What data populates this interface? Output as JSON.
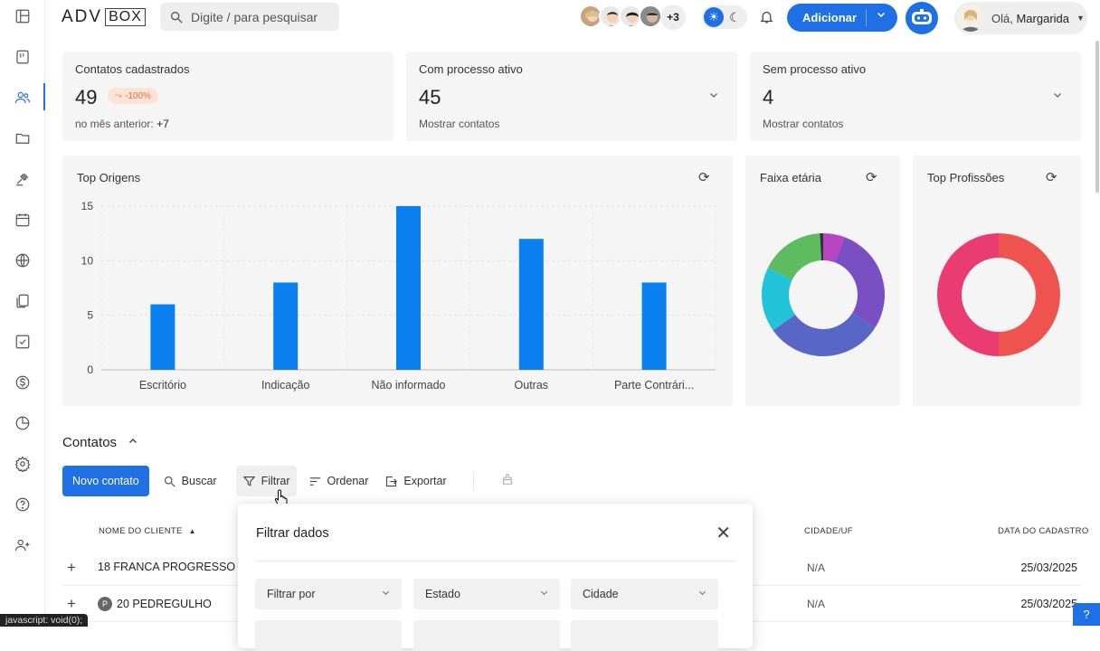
{
  "topbar": {
    "logo_left": "ADV",
    "logo_right": "BOX",
    "search_placeholder": "Digite / para pesquisar",
    "team_more": "+3",
    "add_button": "Adicionar",
    "greeting": "Olá,",
    "user_name": "Margarida"
  },
  "stats": [
    {
      "title": "Contatos cadastrados",
      "value": "49",
      "badge": "-100%",
      "sub_label": "no mês anterior:",
      "sub_value": "+7"
    },
    {
      "title": "Com processo ativo",
      "value": "45",
      "sub_label": "Mostrar contatos"
    },
    {
      "title": "Sem processo ativo",
      "value": "4",
      "sub_label": "Mostrar contatos"
    }
  ],
  "charts": {
    "origins_title": "Top Origens",
    "age_title": "Faixa etária",
    "professions_title": "Top Profissões"
  },
  "chart_data": [
    {
      "type": "bar",
      "title": "Top Origens",
      "categories": [
        "Escritório",
        "Indicação",
        "Não informado",
        "Outras",
        "Parte Contrári..."
      ],
      "values": [
        6,
        8,
        15,
        12,
        8
      ],
      "ylim": [
        0,
        15
      ],
      "yticks": [
        0,
        5,
        10,
        15
      ],
      "grid": true,
      "color": "#0a7ff0"
    },
    {
      "type": "pie",
      "title": "Faixa etária",
      "values": [
        2,
        10,
        11,
        6,
        6,
        0.3
      ],
      "colors": [
        "#b546c0",
        "#7a4fc4",
        "#5867c6",
        "#22c3d8",
        "#5cbc5f",
        "#333333"
      ]
    },
    {
      "type": "pie",
      "title": "Top Profissões",
      "values": [
        50,
        50
      ],
      "colors": [
        "#ef5350",
        "#e83c72"
      ]
    }
  ],
  "contacts": {
    "section_title": "Contatos",
    "new_contact": "Novo contato",
    "search": "Buscar",
    "filter": "Filtrar",
    "sort": "Ordenar",
    "export": "Exportar",
    "col_name": "NOME DO CLIENTE",
    "col_city": "CIDADE/UF",
    "col_date": "DATA DO CADASTRO",
    "rows": [
      {
        "name": "18 FRANCA PROGRESSO",
        "badge": "",
        "city": "N/A",
        "date": "25/03/2025"
      },
      {
        "name": "20 PEDREGULHO",
        "badge": "P",
        "city": "N/A",
        "date": "25/03/2025"
      }
    ]
  },
  "filter_modal": {
    "title": "Filtrar dados",
    "filter_by": "Filtrar por",
    "state": "Estado",
    "city": "Cidade"
  },
  "statusbar": "javascript: void(0);",
  "help": "?"
}
